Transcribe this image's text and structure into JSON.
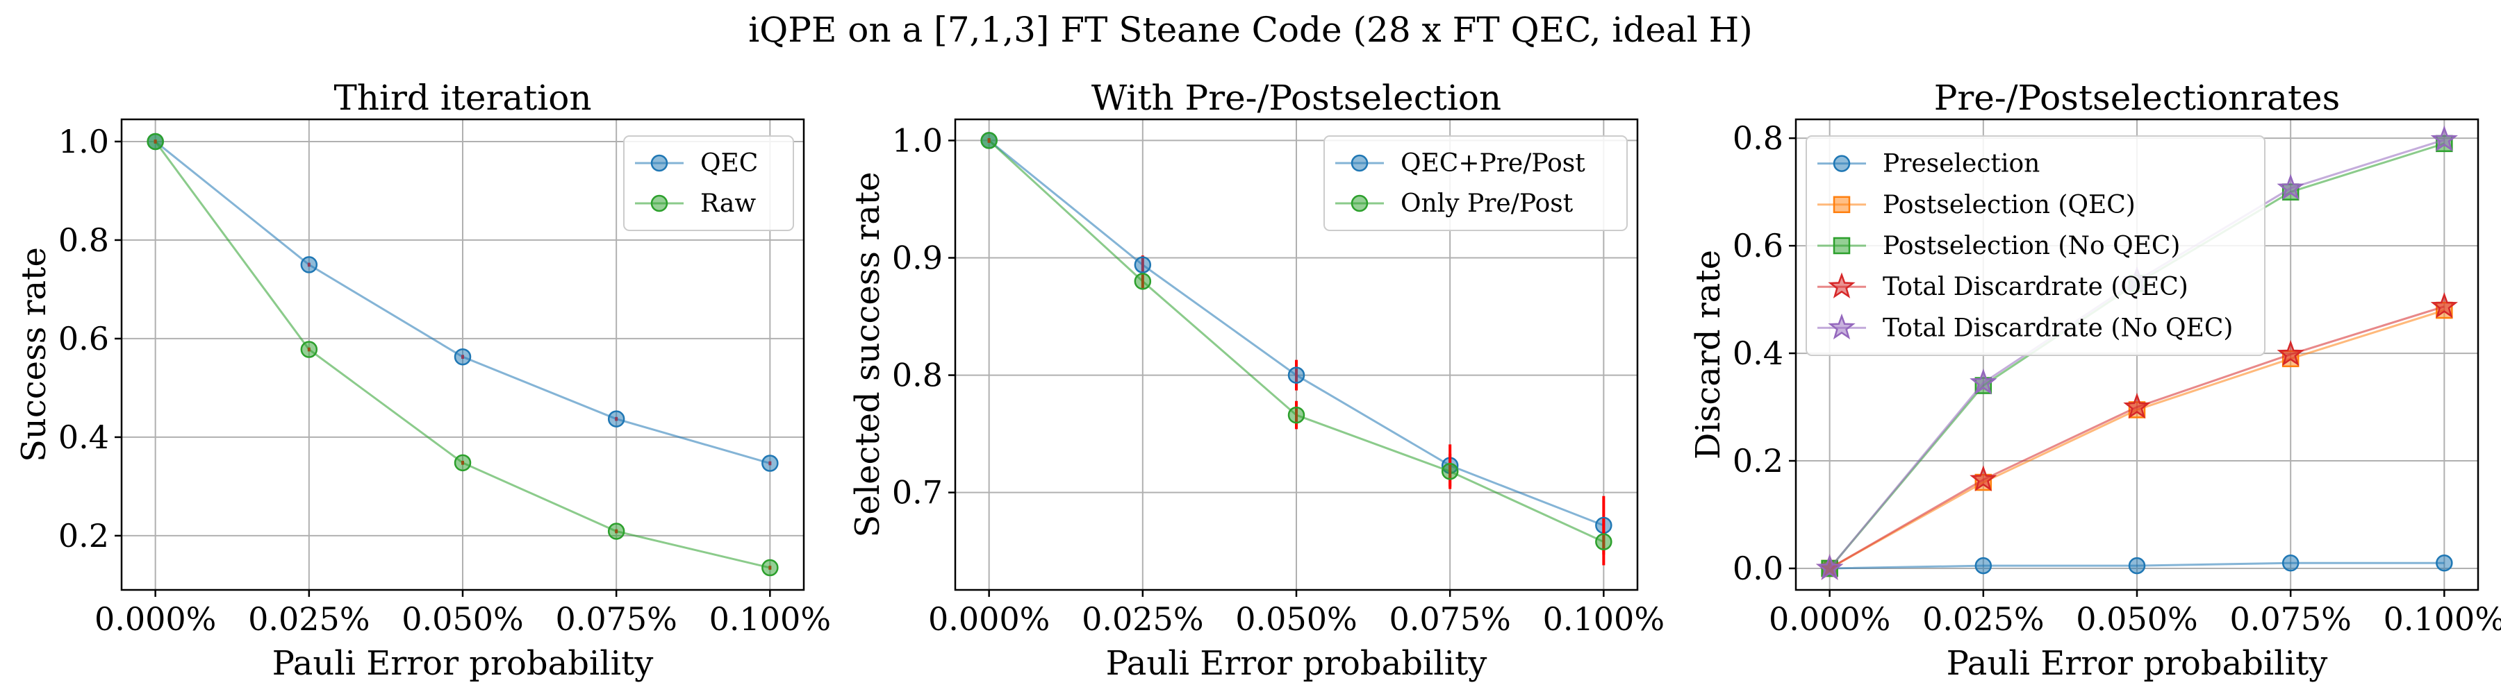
{
  "figure": {
    "suptitle": "iQPE on a [7,1,3] FT Steane Code (28 x FT QEC, ideal H)"
  },
  "chart_data": [
    {
      "type": "line",
      "title": "Third iteration",
      "xlabel": "Pauli Error probability",
      "ylabel": "Success rate",
      "x": [
        0.0,
        0.025,
        0.05,
        0.075,
        0.1
      ],
      "x_tick_labels": [
        "0.000%",
        "0.025%",
        "0.050%",
        "0.075%",
        "0.100%"
      ],
      "xlim": [
        -0.0055,
        0.1055
      ],
      "ylim": [
        0.09,
        1.045
      ],
      "yticks": [
        0.2,
        0.4,
        0.6,
        0.8,
        1.0
      ],
      "ytick_labels": [
        "0.2",
        "0.4",
        "0.6",
        "0.8",
        "1.0"
      ],
      "grid": true,
      "legend_position": "top-right",
      "series": [
        {
          "name": "QEC",
          "values": [
            1.0,
            0.75,
            0.563,
            0.437,
            0.347
          ],
          "color": "#1f77b4",
          "marker": "circle",
          "error": [
            0.004,
            0.004,
            0.004,
            0.004,
            0.004
          ],
          "error_color": "#ff0000"
        },
        {
          "name": "Raw",
          "values": [
            1.0,
            0.578,
            0.348,
            0.209,
            0.135
          ],
          "color": "#2ca02c",
          "marker": "circle",
          "error": [
            0.004,
            0.004,
            0.004,
            0.004,
            0.004
          ],
          "error_color": "#ff0000"
        }
      ]
    },
    {
      "type": "line",
      "title": "With Pre-/Postselection",
      "xlabel": "Pauli Error probability",
      "ylabel": "Selected success rate",
      "x": [
        0.0,
        0.025,
        0.05,
        0.075,
        0.1
      ],
      "x_tick_labels": [
        "0.000%",
        "0.025%",
        "0.050%",
        "0.075%",
        "0.100%"
      ],
      "xlim": [
        -0.0055,
        0.1055
      ],
      "ylim": [
        0.617,
        1.018
      ],
      "yticks": [
        0.7,
        0.8,
        0.9,
        1.0
      ],
      "ytick_labels": [
        "0.7",
        "0.8",
        "0.9",
        "1.0"
      ],
      "grid": true,
      "legend_position": "top-right",
      "series": [
        {
          "name": "QEC+Pre/Post",
          "values": [
            1.0,
            0.894,
            0.8,
            0.723,
            0.672
          ],
          "color": "#1f77b4",
          "marker": "circle",
          "error": [
            0.002,
            0.008,
            0.013,
            0.018,
            0.025
          ],
          "error_color": "#ff0000"
        },
        {
          "name": "Only Pre/Post",
          "values": [
            1.0,
            0.88,
            0.766,
            0.718,
            0.658
          ],
          "color": "#2ca02c",
          "marker": "circle",
          "error": [
            0.002,
            0.007,
            0.012,
            0.015,
            0.02
          ],
          "error_color": "#ff0000"
        }
      ]
    },
    {
      "type": "line",
      "title": "Pre-/Postselectionrates",
      "xlabel": "Pauli Error probability",
      "ylabel": "Discard rate",
      "x": [
        0.0,
        0.025,
        0.05,
        0.075,
        0.1
      ],
      "x_tick_labels": [
        "0.000%",
        "0.025%",
        "0.050%",
        "0.075%",
        "0.100%"
      ],
      "xlim": [
        -0.0055,
        0.1055
      ],
      "ylim": [
        -0.04,
        0.835
      ],
      "yticks": [
        0.0,
        0.2,
        0.4,
        0.6,
        0.8
      ],
      "ytick_labels": [
        "0.0",
        "0.2",
        "0.4",
        "0.6",
        "0.8"
      ],
      "grid": true,
      "legend_position": "top-left",
      "series": [
        {
          "name": "Preselection",
          "values": [
            0.0,
            0.005,
            0.005,
            0.01,
            0.01
          ],
          "color": "#1f77b4",
          "marker": "circle"
        },
        {
          "name": "Postselection (QEC)",
          "values": [
            0.0,
            0.16,
            0.295,
            0.39,
            0.48
          ],
          "color": "#ff7f0e",
          "marker": "square"
        },
        {
          "name": "Postselection (No QEC)",
          "values": [
            0.0,
            0.34,
            0.53,
            0.7,
            0.79
          ],
          "color": "#2ca02c",
          "marker": "square"
        },
        {
          "name": "Total Discardrate (QEC)",
          "values": [
            0.0,
            0.165,
            0.3,
            0.398,
            0.487
          ],
          "color": "#d62728",
          "marker": "star"
        },
        {
          "name": "Total Discardrate (No QEC)",
          "values": [
            0.0,
            0.345,
            0.535,
            0.707,
            0.797
          ],
          "color": "#9467bd",
          "marker": "star"
        }
      ]
    }
  ]
}
